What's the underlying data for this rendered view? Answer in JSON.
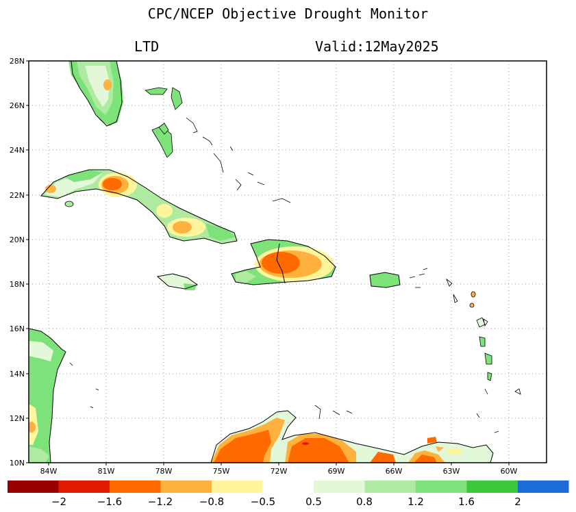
{
  "title": "CPC/NCEP Objective Drought Monitor",
  "subtitle_left": "LTD",
  "subtitle_right": "Valid:12May2025",
  "lat_ticks": [
    "28N",
    "26N",
    "24N",
    "22N",
    "20N",
    "18N",
    "16N",
    "14N",
    "12N",
    "10N"
  ],
  "lon_ticks": [
    "84W",
    "81W",
    "78W",
    "75W",
    "72W",
    "69W",
    "66W",
    "63W",
    "60W"
  ],
  "legend": {
    "colors": [
      "#9b0000",
      "#e21b00",
      "#ff6a00",
      "#ffb13d",
      "#fff59d",
      "#ffffff",
      "#e3f7d9",
      "#aeeaa0",
      "#7ee27a",
      "#3cc83c",
      "#1c6cd9"
    ],
    "labels": [
      "−2",
      "−1.6",
      "−1.2",
      "−0.8",
      "−0.5",
      "0.5",
      "0.8",
      "1.2",
      "1.6",
      "2"
    ]
  }
}
